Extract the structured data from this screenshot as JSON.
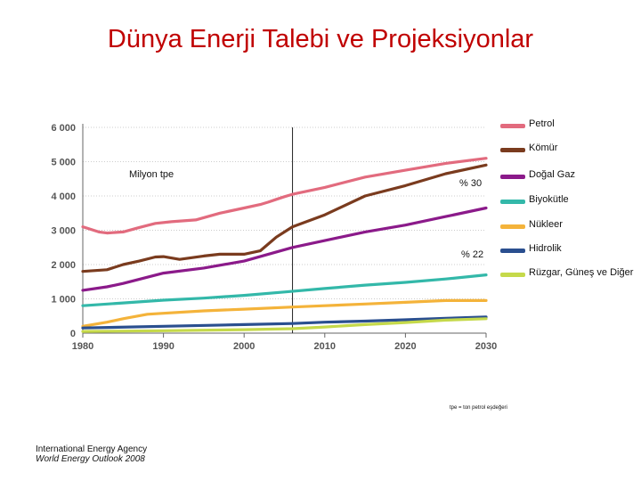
{
  "title": "Dünya Enerji Talebi ve Projeksiyonlar",
  "unit_label": "Milyon tpe",
  "annotations": [
    {
      "id": "pct30",
      "text": "% 30"
    },
    {
      "id": "pct22",
      "text": "% 22"
    }
  ],
  "footnote": "tpe = ton petrol eşdeğeri",
  "source": {
    "line1": "International Energy Agency",
    "line2": "World Energy Outlook 2008"
  },
  "chart_data": {
    "type": "line",
    "xlim": [
      1980,
      2030
    ],
    "ylim": [
      0,
      6000
    ],
    "x_ticks": [
      "1980",
      "1990",
      "2000",
      "2010",
      "2020",
      "2030"
    ],
    "y_ticks": [
      "0",
      "1 000",
      "2 000",
      "3 000",
      "4 000",
      "5 000",
      "6 000"
    ],
    "grid": "horizontal",
    "legend_position": "right",
    "projection_start_year": 2006,
    "series": [
      {
        "name": "Petrol",
        "color": "#e26b7e",
        "x": [
          1980,
          1982,
          1983,
          1985,
          1987,
          1989,
          1991,
          1994,
          1997,
          2000,
          2002,
          2003,
          2004,
          2005,
          2006,
          2010,
          2015,
          2020,
          2025,
          2030
        ],
        "y": [
          3100,
          2950,
          2920,
          2950,
          3080,
          3200,
          3250,
          3300,
          3500,
          3650,
          3750,
          3820,
          3900,
          3980,
          4050,
          4250,
          4550,
          4750,
          4950,
          5100
        ]
      },
      {
        "name": "Kömür",
        "color": "#7a3b1e",
        "x": [
          1980,
          1983,
          1985,
          1987,
          1989,
          1990,
          1992,
          1995,
          1997,
          2000,
          2002,
          2003,
          2004,
          2005,
          2006,
          2010,
          2015,
          2020,
          2025,
          2030
        ],
        "y": [
          1800,
          1850,
          2000,
          2100,
          2220,
          2230,
          2150,
          2250,
          2300,
          2300,
          2400,
          2600,
          2800,
          2950,
          3100,
          3450,
          4000,
          4300,
          4650,
          4900
        ]
      },
      {
        "name": "Doğal Gaz",
        "color": "#8b1a8a",
        "x": [
          1980,
          1983,
          1985,
          1990,
          1995,
          2000,
          2003,
          2006,
          2010,
          2015,
          2020,
          2025,
          2030
        ],
        "y": [
          1250,
          1350,
          1450,
          1750,
          1900,
          2100,
          2300,
          2500,
          2700,
          2950,
          3150,
          3400,
          3650
        ]
      },
      {
        "name": "Biyokütle",
        "color": "#33b8a9",
        "x": [
          1980,
          1985,
          1990,
          1995,
          2000,
          2005,
          2010,
          2015,
          2020,
          2025,
          2030
        ],
        "y": [
          800,
          880,
          960,
          1020,
          1100,
          1200,
          1300,
          1400,
          1480,
          1580,
          1700
        ]
      },
      {
        "name": "Nükleer",
        "color": "#f4b33a",
        "x": [
          1980,
          1983,
          1985,
          1988,
          1990,
          1995,
          2000,
          2006,
          2010,
          2015,
          2020,
          2025,
          2030
        ],
        "y": [
          200,
          320,
          420,
          550,
          580,
          650,
          700,
          760,
          800,
          850,
          900,
          950,
          950
        ]
      },
      {
        "name": "Hidrolik",
        "color": "#2a4f8f",
        "x": [
          1980,
          1990,
          2000,
          2006,
          2010,
          2015,
          2020,
          2025,
          2030
        ],
        "y": [
          150,
          200,
          250,
          280,
          320,
          350,
          390,
          430,
          470
        ]
      },
      {
        "name": "Rüzgar, Güneş ve Diğer",
        "color": "#c5d94a",
        "x": [
          1980,
          1990,
          2000,
          2006,
          2010,
          2015,
          2020,
          2025,
          2030
        ],
        "y": [
          50,
          70,
          100,
          130,
          180,
          250,
          310,
          380,
          420
        ]
      }
    ]
  }
}
